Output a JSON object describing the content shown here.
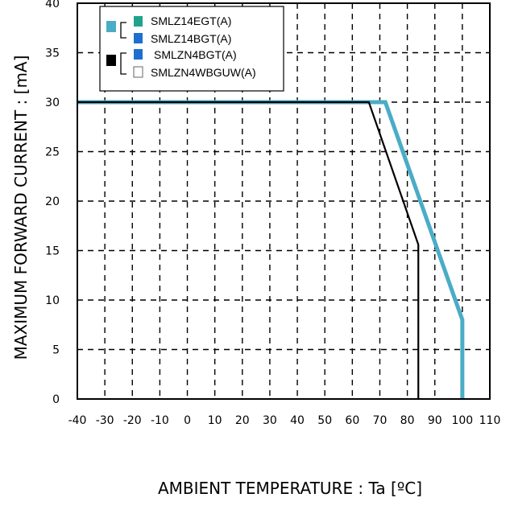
{
  "chart_data": {
    "type": "line",
    "xlabel": "AMBIENT TEMPERATURE : Ta [ºC]",
    "ylabel": "MAXIMUM FORWARD CURRENT : [mA]",
    "xlim": [
      -40,
      110
    ],
    "ylim": [
      0,
      40
    ],
    "xticks": [
      -40,
      -30,
      -20,
      -10,
      0,
      10,
      20,
      30,
      40,
      50,
      60,
      70,
      80,
      90,
      100,
      110
    ],
    "yticks": [
      0,
      5,
      10,
      15,
      20,
      25,
      30,
      35,
      40
    ],
    "grid": true,
    "legend_position": "top-left",
    "series": [
      {
        "color": "#4bacc6",
        "x": [
          -40,
          72,
          100,
          100
        ],
        "y": [
          30,
          30,
          8,
          0
        ]
      },
      {
        "color": "#000000",
        "x": [
          -40,
          66,
          84,
          84
        ],
        "y": [
          30,
          30,
          15.6,
          0
        ]
      }
    ],
    "legend": {
      "groups": [
        {
          "swatch_color": "#4bacc6",
          "items": [
            {
              "label": "SMLZ14EGT(A)",
              "color": "#1fa38b"
            },
            {
              "label": "SMLZ14BGT(A)",
              "color": "#1e6fd0"
            }
          ]
        },
        {
          "swatch_color": "#000000",
          "items": [
            {
              "label": "SMLZN4BGT(A)",
              "color": "#1e6fd0"
            },
            {
              "label": "SMLZN4WBGUW(A)",
              "color": "#ffffff"
            }
          ]
        }
      ]
    }
  }
}
